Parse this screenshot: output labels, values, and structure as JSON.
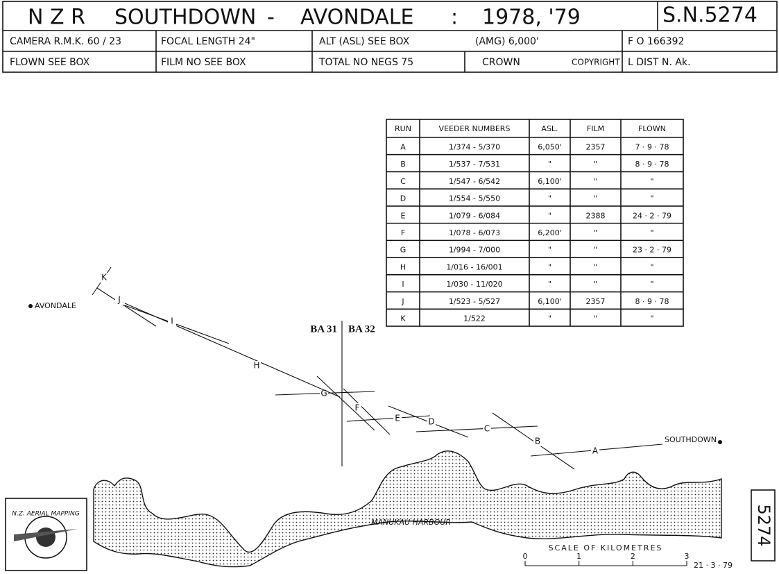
{
  "header": {
    "survey": "N Z R",
    "from": "SOUTHDOWN",
    "dash": "-",
    "to": "AVONDALE",
    "colon": ":",
    "years": "1978, '79",
    "sheet": "S.N.5274"
  },
  "info": [
    [
      "CAMERA R.M.K. 60 / 23",
      "FOCAL LENGTH 24\"",
      "ALT (ASL) SEE BOX",
      "(AMG) 6,000'",
      "F O 166392"
    ],
    [
      "FLOWN SEE BOX",
      "FILM NO SEE BOX",
      "TOTAL NO NEGS 75",
      "CROWN",
      "COPYRIGHT",
      "L DIST N. Ak."
    ]
  ],
  "table": {
    "columns": [
      "RUN",
      "VEEDER NUMBERS",
      "ASL.",
      "FILM",
      "FLOWN"
    ],
    "rows": [
      [
        "A",
        "1/374 - 5/370",
        "6,050'",
        "2357",
        "7 · 9 · 78"
      ],
      [
        "B",
        "1/537 - 7/531",
        "\"",
        "\"",
        "8 · 9 · 78"
      ],
      [
        "C",
        "1/547 - 6/542",
        "6,100'",
        "\"",
        "\""
      ],
      [
        "D",
        "1/554 - 5/550",
        "\"",
        "\"",
        "\""
      ],
      [
        "E",
        "1/079 - 6/084",
        "\"",
        "2388",
        "24 · 2 · 79"
      ],
      [
        "F",
        "1/078 - 6/073",
        "6,200'",
        "\"",
        "\""
      ],
      [
        "G",
        "1/994 - 7/000",
        "\"",
        "\"",
        "23 · 2 · 79"
      ],
      [
        "H",
        "1/016 - 16/001",
        "\"",
        "\"",
        "\""
      ],
      [
        "I",
        "1/030 - 11/020",
        "\"",
        "\"",
        "\""
      ],
      [
        "J",
        "1/523 - 5/527",
        "6,100'",
        "2357",
        "8 · 9 · 78"
      ],
      [
        "K",
        "1/522",
        "\"",
        "\"",
        "\""
      ]
    ]
  },
  "map": {
    "west": "AVONDALE",
    "east": "SOUTHDOWN",
    "sheet_left": "BA 31",
    "sheet_right": "BA 32",
    "water": "MANUKAU HARBOUR"
  },
  "scale": {
    "title": "SCALE OF KILOMETRES",
    "ticks": [
      "0",
      "1",
      "2",
      "3"
    ],
    "date": "21 · 3 · 79"
  },
  "logo": "N.Z. AERIAL MAPPING",
  "side_number": "5274"
}
